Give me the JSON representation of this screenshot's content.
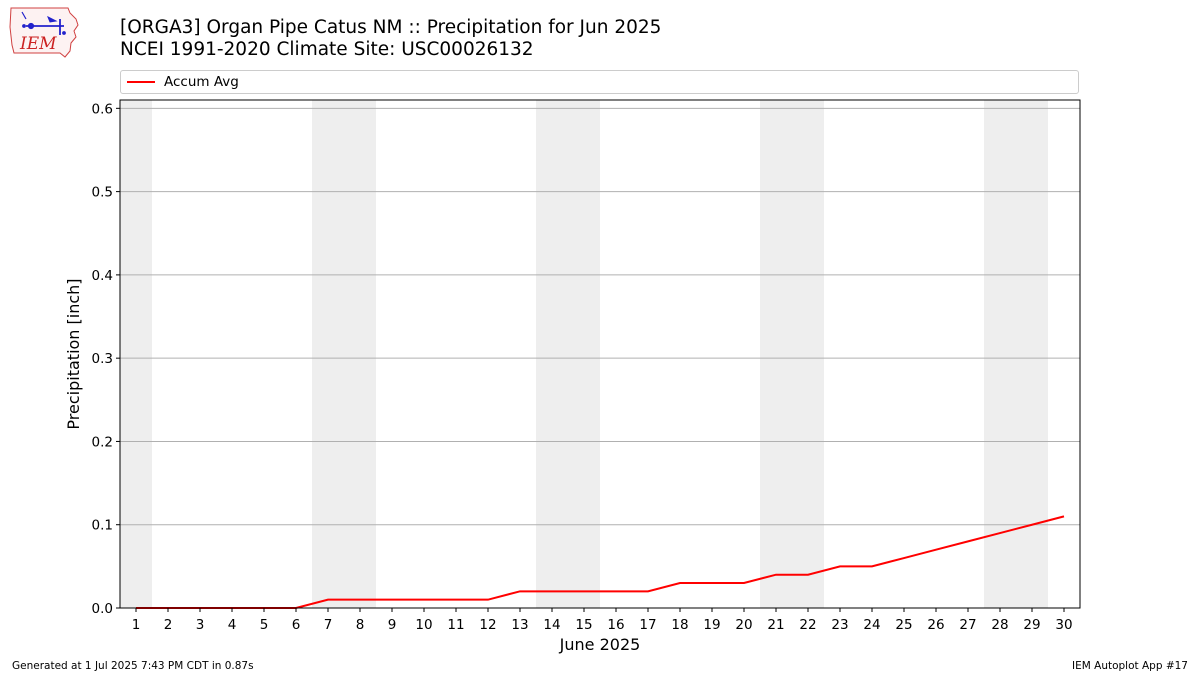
{
  "header": {
    "title_line1": "[ORGA3] Organ Pipe Catus NM :: Precipitation for Jun 2025",
    "title_line2": "NCEI 1991-2020 Climate Site: USC00026132"
  },
  "logo": {
    "text": "IEM"
  },
  "footer": {
    "generated": "Generated at 1 Jul 2025 7:43 PM CDT in 0.87s",
    "app": "IEM Autoplot App #17"
  },
  "colors": {
    "series": "#ff0000",
    "weekend_band": "#eeeeee",
    "grid": "#b0b0b0"
  },
  "chart_data": {
    "type": "line",
    "xlabel": "June 2025",
    "ylabel": "Precipitation [inch]",
    "ylim": [
      0,
      0.61
    ],
    "yticks": [
      0.0,
      0.1,
      0.2,
      0.3,
      0.4,
      0.5,
      0.6
    ],
    "ytick_labels": [
      "0.0",
      "0.1",
      "0.2",
      "0.3",
      "0.4",
      "0.5",
      "0.6"
    ],
    "xlim": [
      0.5,
      30.5
    ],
    "x": [
      1,
      2,
      3,
      4,
      5,
      6,
      7,
      8,
      9,
      10,
      11,
      12,
      13,
      14,
      15,
      16,
      17,
      18,
      19,
      20,
      21,
      22,
      23,
      24,
      25,
      26,
      27,
      28,
      29,
      30
    ],
    "xtick_labels": [
      "1",
      "2",
      "3",
      "4",
      "5",
      "6",
      "7",
      "8",
      "9",
      "10",
      "11",
      "12",
      "13",
      "14",
      "15",
      "16",
      "17",
      "18",
      "19",
      "20",
      "21",
      "22",
      "23",
      "24",
      "25",
      "26",
      "27",
      "28",
      "29",
      "30"
    ],
    "grid": "horizontal",
    "shaded_days": [
      1,
      7,
      8,
      14,
      15,
      21,
      22,
      28,
      29
    ],
    "legend_position": "top",
    "series": [
      {
        "name": "Accum Avg",
        "color": "#ff0000",
        "values": [
          0.0,
          0.0,
          0.0,
          0.0,
          0.0,
          0.0,
          0.01,
          0.01,
          0.01,
          0.01,
          0.01,
          0.01,
          0.02,
          0.02,
          0.02,
          0.02,
          0.02,
          0.03,
          0.03,
          0.03,
          0.04,
          0.04,
          0.05,
          0.05,
          0.06,
          0.07,
          0.08,
          0.09,
          0.1,
          0.11
        ]
      }
    ]
  }
}
